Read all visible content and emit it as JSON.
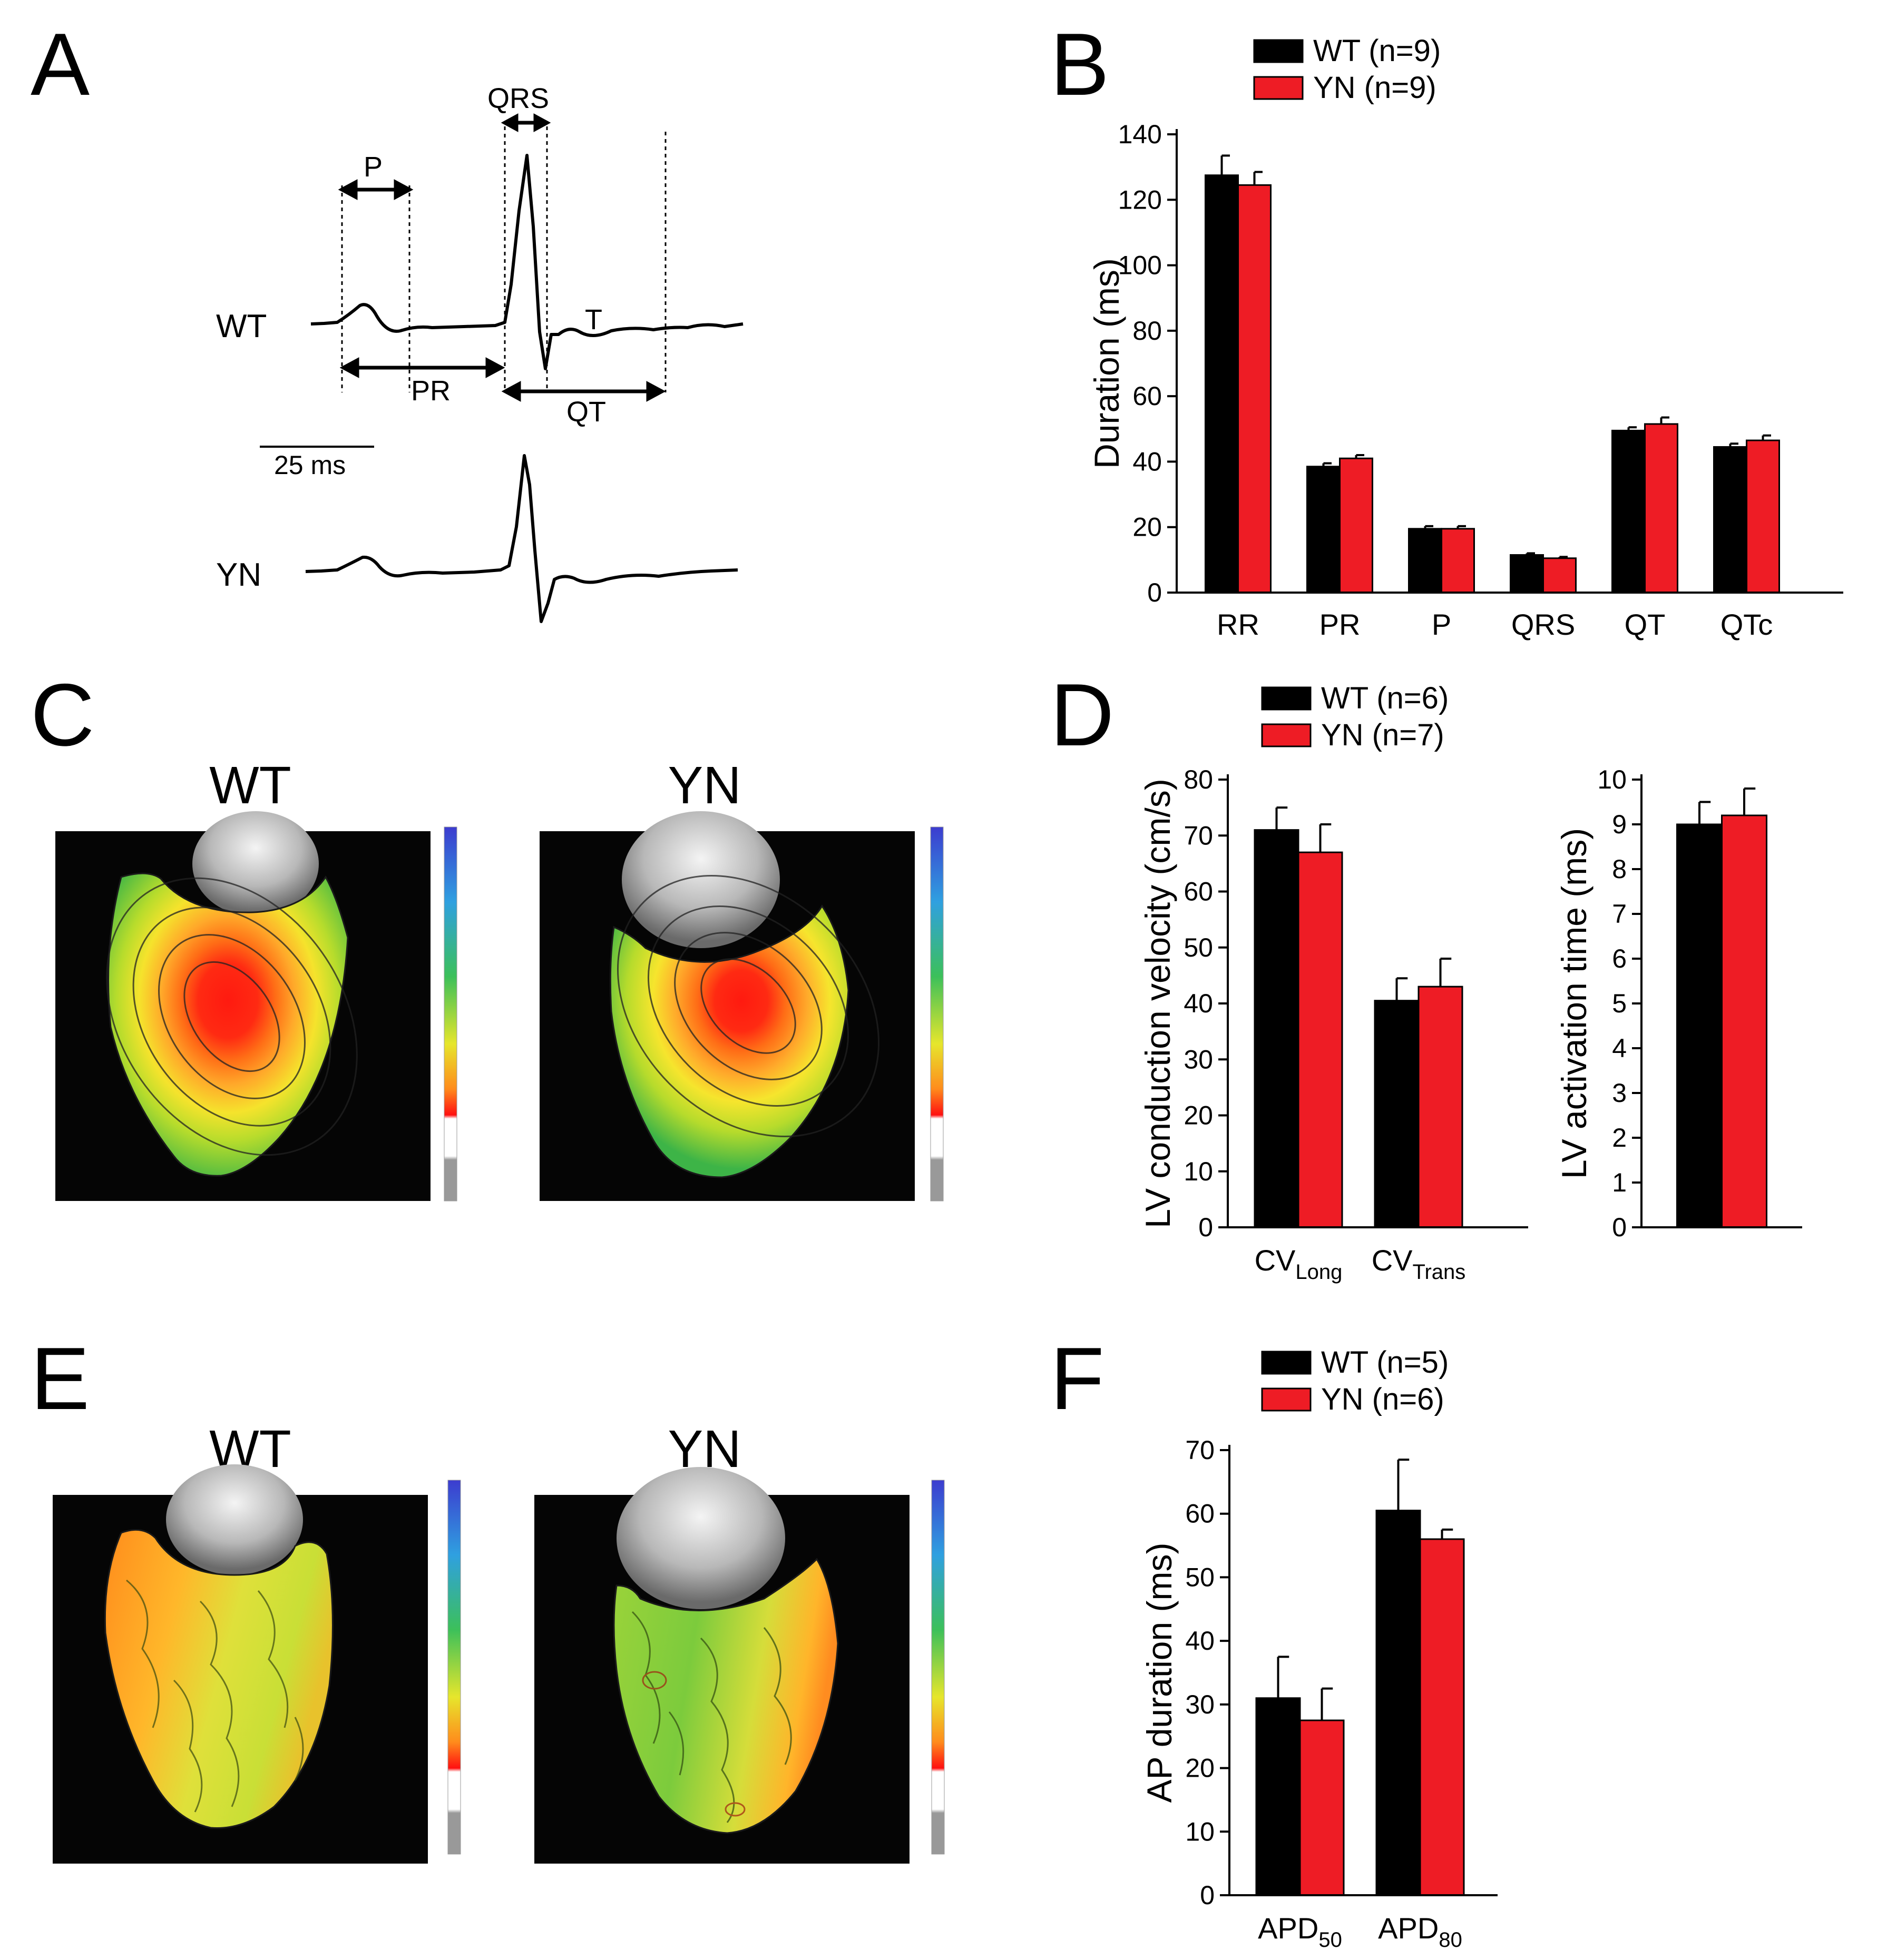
{
  "figure": {
    "panel_labels": [
      "A",
      "B",
      "C",
      "D",
      "E",
      "F"
    ]
  },
  "colors": {
    "wt": "#000000",
    "yn": "#ee1c25"
  },
  "ecg": {
    "trace_labels": [
      "WT",
      "YN"
    ],
    "interval_labels": {
      "p": "P",
      "qrs": "QRS",
      "t": "T",
      "pr": "PR",
      "qt": "QT"
    },
    "scale_bar": "25 ms"
  },
  "maps": {
    "activation_titles": [
      "WT",
      "YN"
    ],
    "apd_titles": [
      "WT",
      "YN"
    ]
  },
  "chart_data": [
    {
      "id": "B",
      "type": "bar",
      "legend": [
        "WT (n=9)",
        "YN (n=9)"
      ],
      "ylabel": "Duration (ms)",
      "ylim": [
        0,
        140
      ],
      "yticks": [
        "0",
        "20",
        "40",
        "60",
        "80",
        "100",
        "120",
        "140"
      ],
      "categories": [
        "RR",
        "PR",
        "P",
        "QRS",
        "QT",
        "QTc"
      ],
      "series": [
        {
          "name": "WT (n=9)",
          "values": [
            127.5,
            38.5,
            19.5,
            11.5,
            49.5,
            44.5
          ],
          "errors": [
            6,
            1,
            0.8,
            0.5,
            1,
            1
          ]
        },
        {
          "name": "YN (n=9)",
          "values": [
            124.5,
            41,
            19.5,
            10.5,
            51.5,
            46.5
          ],
          "errors": [
            4,
            1,
            0.8,
            0.4,
            2,
            1.5
          ]
        }
      ]
    },
    {
      "id": "D1",
      "type": "bar",
      "legend": [
        "WT (n=6)",
        "YN (n=7)"
      ],
      "ylabel": "LV conduction velocity (cm/s)",
      "ylim": [
        0,
        80
      ],
      "yticks": [
        "0",
        "10",
        "20",
        "30",
        "40",
        "50",
        "60",
        "70",
        "80"
      ],
      "categories": [
        {
          "base": "CV",
          "sub": "Long"
        },
        {
          "base": "CV",
          "sub": "Trans"
        }
      ],
      "series": [
        {
          "name": "WT (n=6)",
          "values": [
            71,
            40.5
          ],
          "errors": [
            4,
            4
          ]
        },
        {
          "name": "YN (n=7)",
          "values": [
            67,
            43
          ],
          "errors": [
            5,
            5
          ]
        }
      ]
    },
    {
      "id": "D2",
      "type": "bar",
      "ylabel": "LV activation time (ms)",
      "ylim": [
        0,
        10
      ],
      "yticks": [
        "0",
        "1",
        "2",
        "3",
        "4",
        "5",
        "6",
        "7",
        "8",
        "9",
        "10"
      ],
      "categories": [
        ""
      ],
      "series": [
        {
          "name": "WT (n=6)",
          "values": [
            9
          ],
          "errors": [
            0.5
          ]
        },
        {
          "name": "YN (n=7)",
          "values": [
            9.2
          ],
          "errors": [
            0.6
          ]
        }
      ]
    },
    {
      "id": "F",
      "type": "bar",
      "legend": [
        "WT (n=5)",
        "YN (n=6)"
      ],
      "ylabel": "AP duration (ms)",
      "ylim": [
        0,
        70
      ],
      "yticks": [
        "0",
        "10",
        "20",
        "30",
        "40",
        "50",
        "60",
        "70"
      ],
      "categories": [
        {
          "base": "APD",
          "sub": "50"
        },
        {
          "base": "APD",
          "sub": "80"
        }
      ],
      "series": [
        {
          "name": "WT (n=5)",
          "values": [
            31,
            60.5
          ],
          "errors": [
            6.5,
            8
          ]
        },
        {
          "name": "YN (n=6)",
          "values": [
            27.5,
            56
          ],
          "errors": [
            5,
            1.5
          ]
        }
      ]
    }
  ]
}
